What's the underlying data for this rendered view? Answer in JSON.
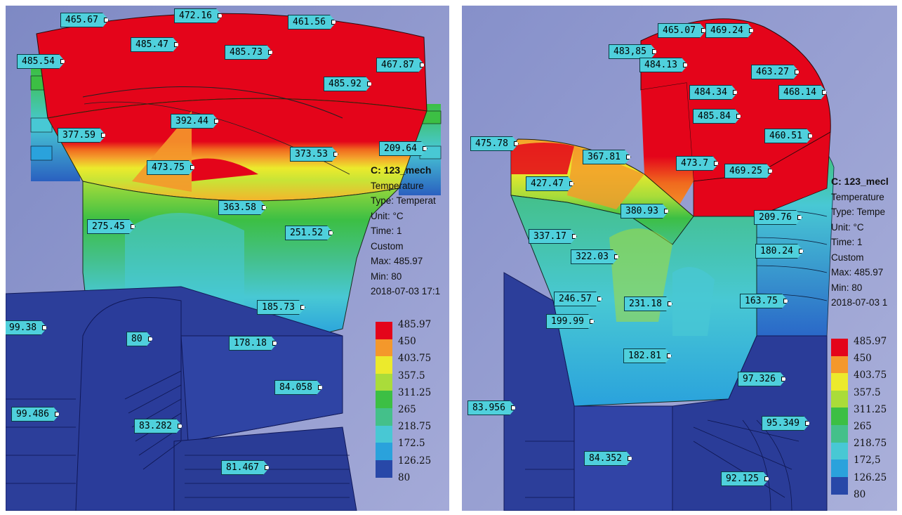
{
  "left": {
    "info": {
      "title": "C: 123_mech",
      "lines": [
        "Temperature",
        "Type: Temperat",
        "Unit: °C",
        "Time: 1",
        "Custom",
        "Max: 485.97",
        "Min: 80",
        "2018-07-03 17:1"
      ]
    },
    "legend": [
      "485.97",
      "450",
      "403.75",
      "357.5",
      "311.25",
      "265",
      "218.75",
      "172.5",
      "126.25",
      "80"
    ],
    "probes": [
      "465.67",
      "472.16",
      "485.47",
      "485.73",
      "461.56",
      "485.54",
      "467.87",
      "485.92",
      "392.44",
      "377.59",
      "373.53",
      "209.64",
      "473.75",
      "363.58",
      "275.45",
      "251.52",
      "185.73",
      "99.38",
      "80",
      "178.18",
      "84.058",
      "99.486",
      "83.282",
      "81.467"
    ]
  },
  "right": {
    "info": {
      "title": "C: 123_mecl",
      "lines": [
        "Temperature",
        "Type: Tempe",
        "Unit: °C",
        "Time: 1",
        "Custom",
        "Max: 485.97",
        "Min: 80",
        "2018-07-03 1"
      ]
    },
    "legend": [
      "485.97",
      "450",
      "403.75",
      "357.5",
      "311.25",
      "265",
      "218.75",
      "172,5",
      "126.25",
      "80"
    ],
    "probes": [
      "465.07",
      "469.24",
      "483,85",
      "484.13",
      "463.27",
      "484.34",
      "468.14",
      "485.84",
      "460.51",
      "475.78",
      "367.81",
      "473.7",
      "469.25",
      "427.47",
      "380.93",
      "209.76",
      "337.17",
      "322.03",
      "180.24",
      "246.57",
      "231.18",
      "163.75",
      "199.99",
      "182.81",
      "97.326",
      "83.956",
      "95.349",
      "84.352",
      "92.125"
    ]
  },
  "colors": {
    "background": "#8a93c9",
    "legend": [
      "#e4041a",
      "#f4982b",
      "#ecea2c",
      "#aadc3a",
      "#3cbf44",
      "#44c08a",
      "#48c8d4",
      "#2aa2dc",
      "#2848a8"
    ],
    "probe": "#4fd0dc"
  }
}
